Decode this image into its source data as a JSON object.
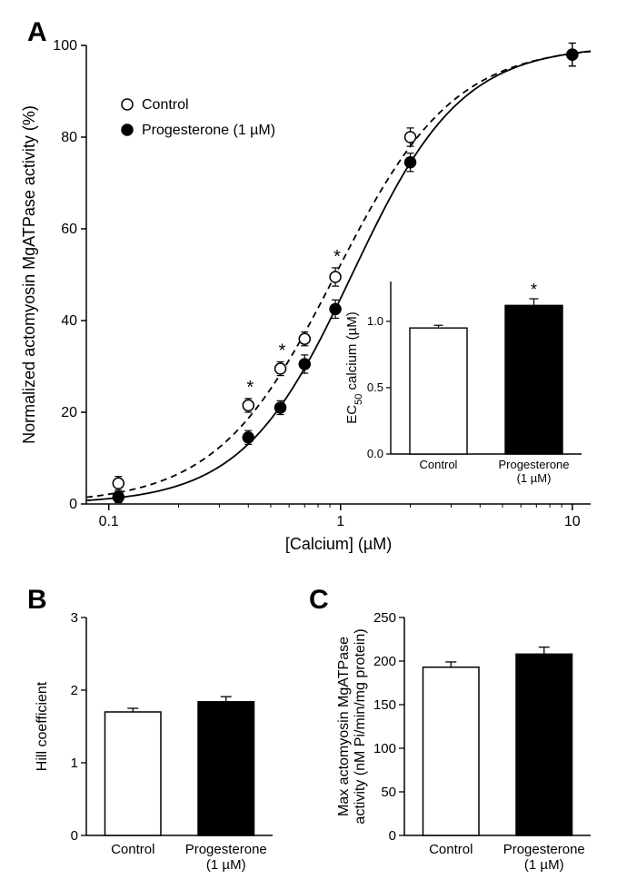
{
  "panelA": {
    "label": "A",
    "type": "scatter-hill",
    "xlabel": "[Calcium] (µM)",
    "ylabel": "Normalized actomyosin MgATPase activity (%)",
    "xscale": "log",
    "xlim": [
      0.08,
      12
    ],
    "ylim": [
      0,
      100
    ],
    "xticks": [
      0.1,
      1,
      10
    ],
    "xtick_labels": [
      "0.1",
      "1",
      "10"
    ],
    "yticks": [
      0,
      20,
      40,
      60,
      80,
      100
    ],
    "legend": [
      {
        "label": "Control",
        "marker": "open-circle"
      },
      {
        "label": "Progesterone (1 µM)",
        "marker": "filled-circle"
      }
    ],
    "series": [
      {
        "name": "Control",
        "marker": "open-circle",
        "line": "dashed",
        "color": "#000000",
        "fill": "#ffffff",
        "ec50": 0.95,
        "hill": 1.7,
        "points": [
          {
            "x": 0.11,
            "y": 4.5,
            "err": 1.5
          },
          {
            "x": 0.4,
            "y": 21.5,
            "err": 1.5,
            "sig": true
          },
          {
            "x": 0.55,
            "y": 29.5,
            "err": 1.5,
            "sig": true
          },
          {
            "x": 0.7,
            "y": 36.0,
            "err": 1.5
          },
          {
            "x": 0.95,
            "y": 49.5,
            "err": 2.0,
            "sig": true
          },
          {
            "x": 2.0,
            "y": 80.0,
            "err": 2.0
          },
          {
            "x": 10.0,
            "y": 98.0,
            "err": 2.5
          }
        ]
      },
      {
        "name": "Progesterone",
        "marker": "filled-circle",
        "line": "solid",
        "color": "#000000",
        "fill": "#000000",
        "ec50": 1.12,
        "hill": 1.84,
        "points": [
          {
            "x": 0.11,
            "y": 1.5,
            "err": 1.2
          },
          {
            "x": 0.4,
            "y": 14.5,
            "err": 1.5
          },
          {
            "x": 0.55,
            "y": 21.0,
            "err": 1.5
          },
          {
            "x": 0.7,
            "y": 30.5,
            "err": 2.0
          },
          {
            "x": 0.95,
            "y": 42.5,
            "err": 2.0
          },
          {
            "x": 2.0,
            "y": 74.5,
            "err": 2.0
          },
          {
            "x": 10.0,
            "y": 98.0,
            "err": 2.5
          }
        ]
      }
    ],
    "inset": {
      "type": "bar",
      "ylabel_html": "EC<tspan baseline-shift='sub' font-size='11'>50</tspan> calcium (µM)",
      "categories": [
        "Control",
        "Progesterone\n(1 µM)"
      ],
      "values": [
        0.95,
        1.12
      ],
      "errors": [
        0.02,
        0.05
      ],
      "sig": [
        false,
        true
      ],
      "bar_colors": [
        "#ffffff",
        "#000000"
      ],
      "bar_border": "#000000",
      "ylim": [
        0,
        1.3
      ],
      "yticks": [
        0.0,
        0.5,
        1.0
      ],
      "ytick_labels": [
        "0.0",
        "0.5",
        "1.0"
      ]
    }
  },
  "panelB": {
    "label": "B",
    "type": "bar",
    "ylabel": "Hill coefficient",
    "categories": [
      "Control",
      "Progesterone\n(1 µM)"
    ],
    "values": [
      1.7,
      1.84
    ],
    "errors": [
      0.05,
      0.07
    ],
    "bar_colors": [
      "#ffffff",
      "#000000"
    ],
    "bar_border": "#000000",
    "ylim": [
      0,
      3
    ],
    "yticks": [
      0,
      1,
      2,
      3
    ]
  },
  "panelC": {
    "label": "C",
    "type": "bar",
    "ylabel_line1": "Max actomyosin MgATPase",
    "ylabel_line2": "activity (nM Pi/min/mg protein)",
    "categories": [
      "Control",
      "Progesterone\n(1 µM)"
    ],
    "values": [
      193,
      208
    ],
    "errors": [
      6,
      8
    ],
    "bar_colors": [
      "#ffffff",
      "#000000"
    ],
    "bar_border": "#000000",
    "ylim": [
      0,
      250
    ],
    "yticks": [
      0,
      50,
      100,
      150,
      200,
      250
    ]
  },
  "style": {
    "panel_label_fontsize": 30,
    "panel_label_weight": "bold",
    "axis_label_fontsize": 18,
    "tick_label_fontsize": 16,
    "small_tick_fontsize": 13,
    "legend_fontsize": 16,
    "axis_color": "#000000",
    "axis_width": 1.5,
    "marker_radius": 6,
    "marker_stroke": 1.5,
    "line_width": 1.8,
    "error_cap": 4,
    "background": "#ffffff"
  }
}
